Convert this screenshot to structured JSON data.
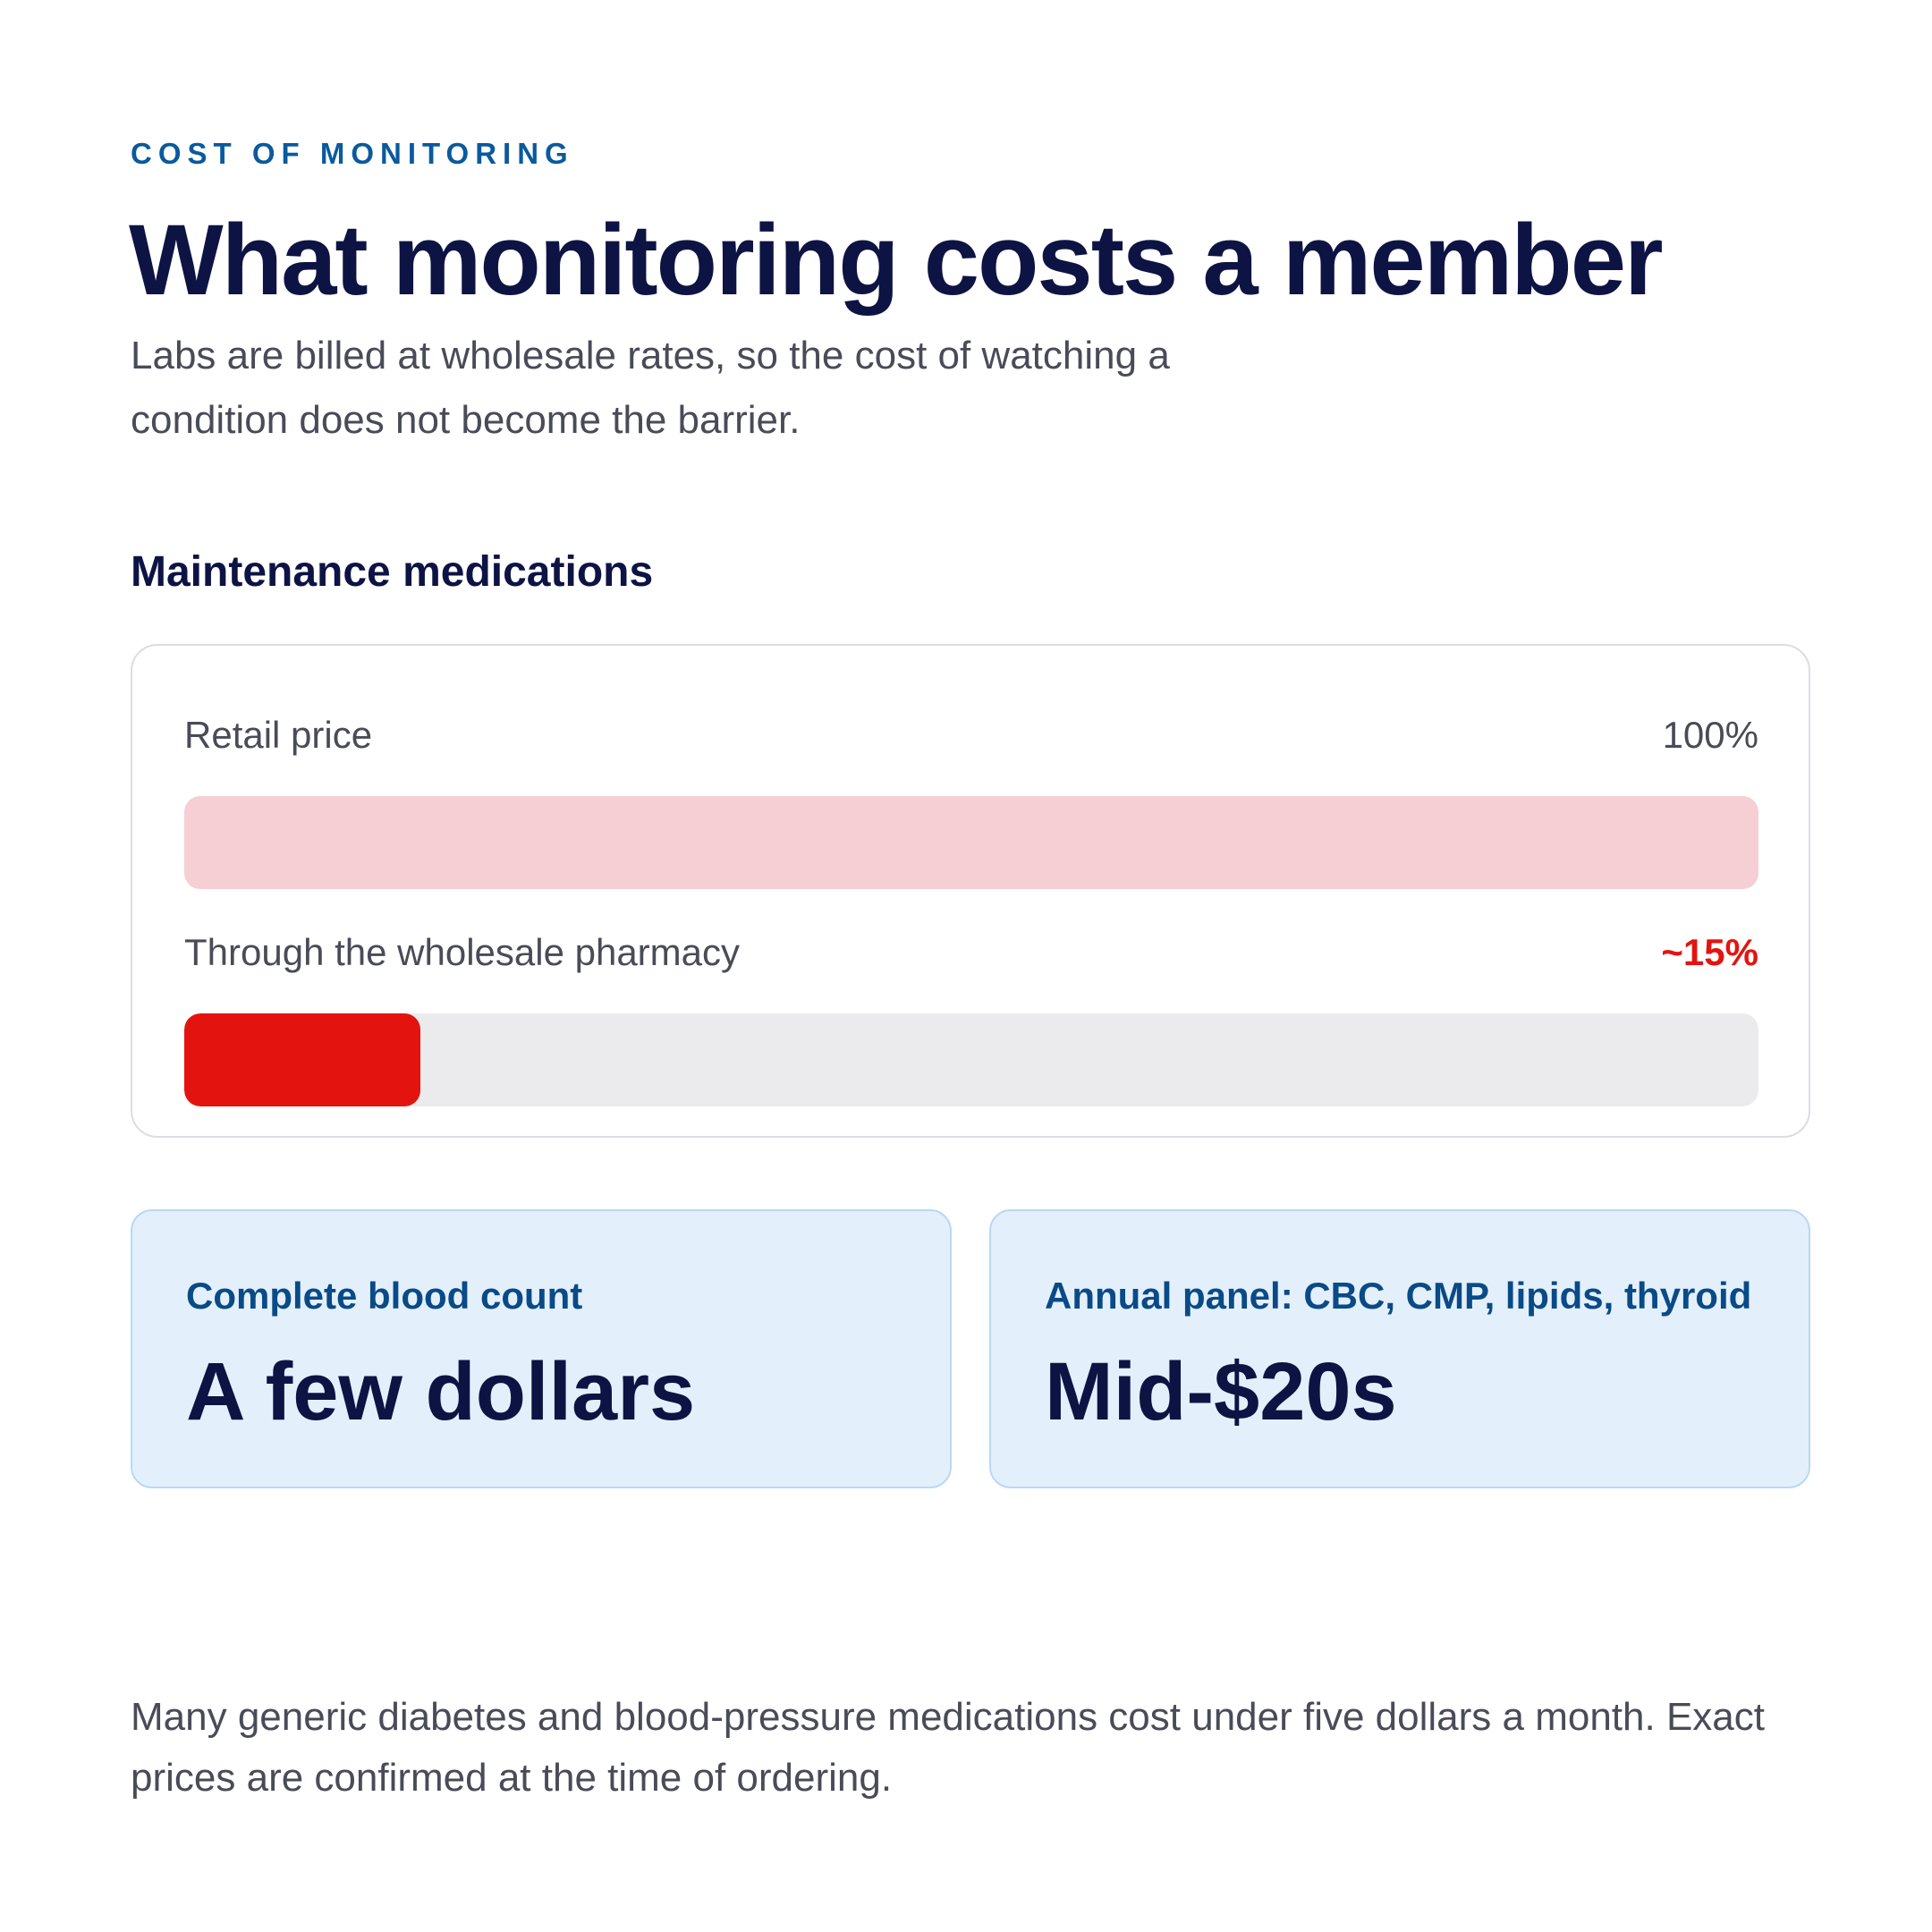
{
  "header": {
    "eyebrow": "COST OF MONITORING",
    "title": "What monitoring costs a member",
    "subtitle": "Labs are billed at wholesale rates, so the cost of watching a condition does not become the barrier."
  },
  "medications": {
    "heading": "Maintenance medications",
    "bars": [
      {
        "label": "Retail price",
        "value_text": "100%",
        "fraction": 1.0,
        "color": "#f5cfd4",
        "track_color": "#f5cfd4"
      },
      {
        "label": "Through the wholesale pharmacy",
        "value_text": "~15%",
        "fraction": 0.15,
        "color": "#e3140f",
        "track_color": "#ebebed"
      }
    ]
  },
  "labs": [
    {
      "label": "Complete blood count",
      "value": "A few dollars"
    },
    {
      "label": "Annual panel: CBC, CMP, lipids, thyroid",
      "value": "Mid-$20s"
    }
  ],
  "footnote": "Many generic diabetes and blood-pressure medications cost under five dollars a month. Exact prices are confirmed at the time of ordering.",
  "colors": {
    "navy": "#0d1444",
    "eyebrow_blue": "#0a5a9c",
    "accent_red": "#e3140f",
    "retail_pink": "#f5cfd4",
    "card_blue": "#e3f0fc"
  }
}
